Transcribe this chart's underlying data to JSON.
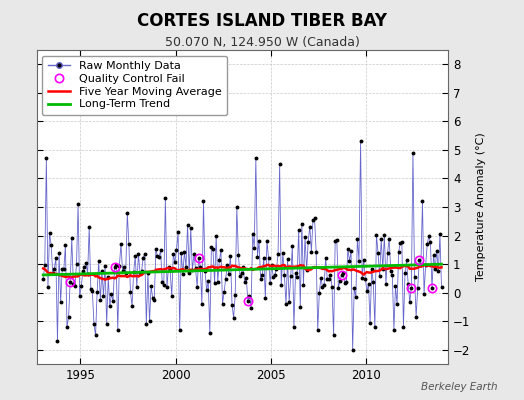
{
  "title": "CORTES ISLAND TIBER BAY",
  "subtitle": "50.070 N, 124.950 W (Canada)",
  "ylabel": "Temperature Anomaly (°C)",
  "watermark": "Berkeley Earth",
  "ylim": [
    -2.5,
    8.5
  ],
  "yticks": [
    -2,
    -1,
    0,
    1,
    2,
    3,
    4,
    5,
    6,
    7,
    8
  ],
  "xlim_start": 1992.7,
  "xlim_end": 2014.3,
  "xticks": [
    1995,
    2000,
    2005,
    2010
  ],
  "bg_color": "#e8e8e8",
  "plot_bg_color": "#ffffff",
  "raw_line_color": "#6666cc",
  "raw_dot_color": "#000000",
  "qc_fail_color": "#ff00ff",
  "moving_avg_color": "#ff0000",
  "trend_color": "#00bb00",
  "trend_slope": 0.018,
  "trend_intercept": 0.62,
  "title_fontsize": 12,
  "subtitle_fontsize": 9,
  "label_fontsize": 8,
  "tick_fontsize": 8.5
}
